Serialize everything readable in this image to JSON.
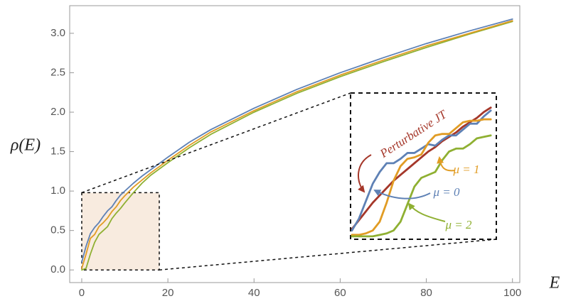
{
  "chart_data": [
    {
      "type": "line",
      "xlabel": "E",
      "ylabel": "ρ(E)",
      "x": [
        0,
        1,
        2,
        3,
        4,
        5,
        6,
        7,
        8,
        9,
        10,
        12,
        14,
        16,
        18,
        20,
        25,
        30,
        40,
        50,
        60,
        70,
        80,
        90,
        100
      ],
      "series": [
        {
          "color": "#8fb032",
          "values": [
            0,
            0.02,
            0.2,
            0.35,
            0.45,
            0.5,
            0.55,
            0.65,
            0.72,
            0.78,
            0.85,
            0.98,
            1.1,
            1.2,
            1.28,
            1.36,
            1.55,
            1.72,
            2.0,
            2.24,
            2.45,
            2.64,
            2.82,
            2.99,
            3.15
          ]
        },
        {
          "color": "#e19c24",
          "values": [
            0.02,
            0.2,
            0.4,
            0.45,
            0.55,
            0.6,
            0.66,
            0.74,
            0.8,
            0.88,
            0.94,
            1.05,
            1.14,
            1.23,
            1.31,
            1.39,
            1.58,
            1.75,
            2.02,
            2.26,
            2.47,
            2.66,
            2.84,
            3.0,
            3.16
          ]
        },
        {
          "color": "#5e81b5",
          "values": [
            0.1,
            0.3,
            0.46,
            0.54,
            0.6,
            0.68,
            0.75,
            0.8,
            0.88,
            0.95,
            1.0,
            1.1,
            1.19,
            1.27,
            1.35,
            1.43,
            1.62,
            1.78,
            2.05,
            2.29,
            2.5,
            2.69,
            2.87,
            3.03,
            3.18
          ]
        }
      ],
      "xlim": [
        -2.8,
        101.7
      ],
      "ylim": [
        -0.16,
        3.35
      ],
      "xticks": [
        0,
        20,
        40,
        60,
        80,
        100
      ],
      "yticks": [
        {
          "value": 0,
          "label": "0.0"
        },
        0.5,
        {
          "value": 1,
          "label": "1.0"
        },
        1.5,
        {
          "value": 2,
          "label": "2.0"
        },
        2.5,
        {
          "value": 3,
          "label": "3.0"
        }
      ],
      "zoom_box": {
        "xlim": [
          0,
          18
        ],
        "ylim": [
          0,
          0.98
        ],
        "color": "#f8ebdf"
      }
    },
    {
      "type": "line",
      "x": [
        0,
        1,
        2,
        3,
        4,
        5,
        6,
        7,
        8,
        9,
        10,
        11,
        12,
        13,
        14,
        15,
        16,
        17,
        18,
        19,
        20
      ],
      "series": [
        {
          "name": "Perturbative JT",
          "color": "#a5372a",
          "values": [
            0.07,
            0.13,
            0.19,
            0.25,
            0.3,
            0.35,
            0.4,
            0.44,
            0.48,
            0.52,
            0.56,
            0.6,
            0.63,
            0.67,
            0.7,
            0.73,
            0.77,
            0.8,
            0.83,
            0.87,
            0.9
          ]
        },
        {
          "name": "μ = 0",
          "color": "#5e81b5",
          "values": [
            0.06,
            0.14,
            0.26,
            0.38,
            0.46,
            0.52,
            0.52,
            0.55,
            0.59,
            0.59,
            0.62,
            0.65,
            0.64,
            0.68,
            0.71,
            0.71,
            0.75,
            0.79,
            0.79,
            0.84,
            0.88
          ]
        },
        {
          "name": "μ = 1",
          "color": "#e19c24",
          "values": [
            0.03,
            0.03,
            0.04,
            0.06,
            0.12,
            0.25,
            0.4,
            0.5,
            0.55,
            0.56,
            0.58,
            0.66,
            0.71,
            0.72,
            0.72,
            0.76,
            0.8,
            0.81,
            0.81,
            0.82,
            0.82
          ]
        },
        {
          "name": "μ = 2",
          "color": "#8fb032",
          "values": [
            0.02,
            0.02,
            0.02,
            0.02,
            0.03,
            0.04,
            0.06,
            0.12,
            0.24,
            0.36,
            0.42,
            0.44,
            0.46,
            0.54,
            0.6,
            0.62,
            0.62,
            0.65,
            0.69,
            0.7,
            0.71
          ]
        }
      ],
      "xlim": [
        -0.2,
        20.8
      ],
      "ylim": [
        0,
        1
      ]
    }
  ]
}
